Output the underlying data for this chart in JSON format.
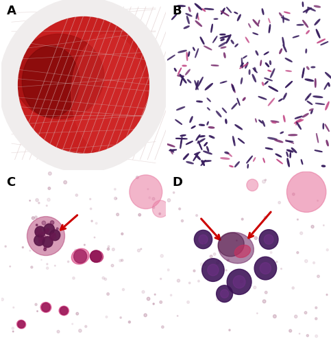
{
  "figure_width": 4.83,
  "figure_height": 5.0,
  "dpi": 100,
  "panels": [
    "A",
    "B",
    "C",
    "D"
  ],
  "panel_label_fontsize": 13,
  "panel_label_color": "#000000",
  "panel_label_weight": "bold",
  "border_color": "#888888",
  "border_linewidth": 1.0,
  "panel_A": {
    "bg_color": "#f0eded",
    "plate_outer_color": "#e8d8d0",
    "plate_rim_color": "#d4c0b8",
    "plate_agar_color": "#c03030",
    "plate_dark_color": "#8a1515",
    "streak_color": "#c8c0c4",
    "streak_alpha": 0.55
  },
  "panel_B": {
    "bg_color": "#f0e8ee",
    "rod_color_dark": "#3a2060",
    "rod_color_mid": "#7a3070",
    "rod_color_pink": "#c04080"
  },
  "panel_C": {
    "bg_color": "#f5e0e8",
    "cell_large_color": "#7a2060",
    "cell_mid_color": "#c03070",
    "cell_small_color": "#d04080",
    "nucleus_color": "#4a1040",
    "arrow_color": "#cc0000",
    "blob_color": "#e878a0"
  },
  "panel_D": {
    "bg_color": "#f5e0e8",
    "cell_dark_color": "#3a1050",
    "cell_pink_color": "#d04080",
    "cell_red_color": "#c03060",
    "arrow_color": "#cc0000",
    "blob_color": "#e878a0"
  }
}
